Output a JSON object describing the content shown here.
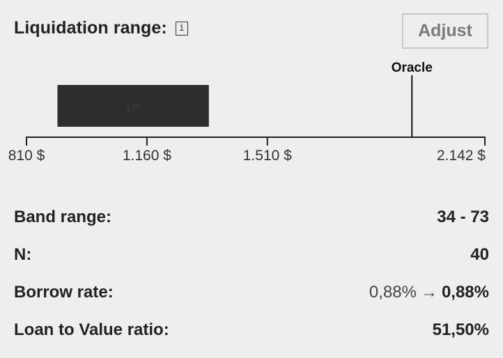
{
  "header": {
    "title": "Liquidation range:",
    "info_icon": "i",
    "adjust_label": "Adjust"
  },
  "chart_data": {
    "type": "bar",
    "x_axis": {
      "min": 810,
      "max": 2142,
      "ticks": [
        {
          "value": 810,
          "label": "810 $"
        },
        {
          "value": 1160,
          "label": "1.160 $"
        },
        {
          "value": 1510,
          "label": "1.510 $"
        },
        {
          "value": 2142,
          "label": "2.142 $"
        }
      ]
    },
    "range": {
      "name": "LP",
      "from": 900,
      "to": 1340,
      "color": "#2d2d2d"
    },
    "marker": {
      "name": "Oracle",
      "value": 1930
    }
  },
  "stats": {
    "band_range": {
      "label": "Band range:",
      "value": "34 - 73"
    },
    "n": {
      "label": "N:",
      "value": "40"
    },
    "borrow_rate": {
      "label": "Borrow rate:",
      "old": "0,88%",
      "arrow": "→",
      "new": "0,88%"
    },
    "ltv": {
      "label": "Loan to Value ratio:",
      "value": "51,50%"
    }
  }
}
